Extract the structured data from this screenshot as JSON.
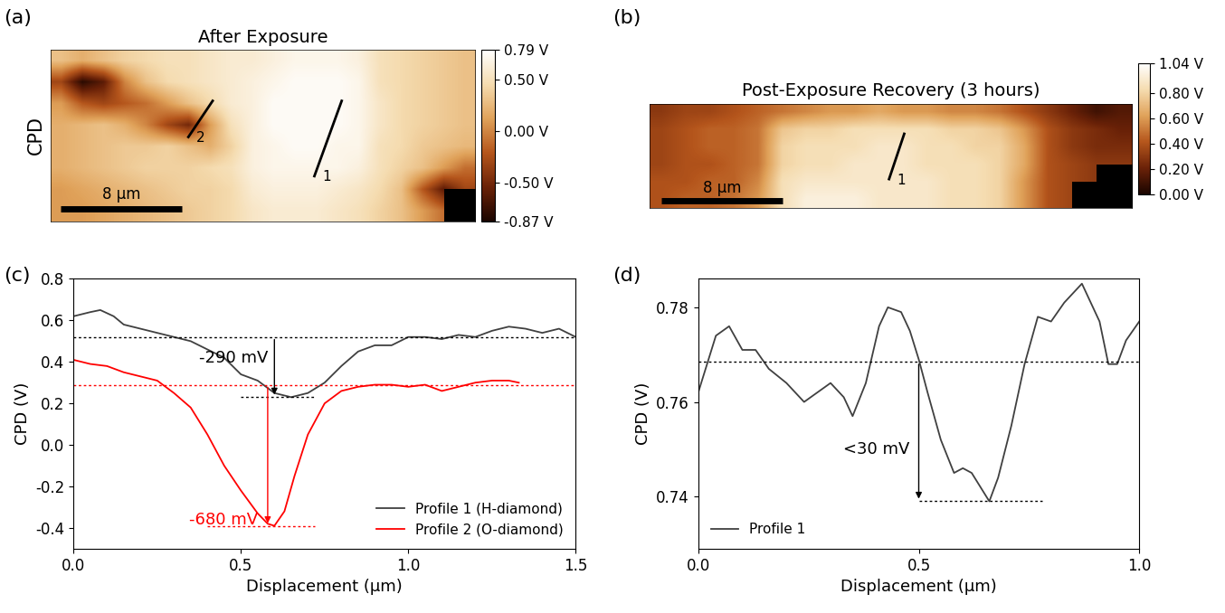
{
  "chart_data": [
    {
      "type": "heatmap",
      "panel": "(a)",
      "title": "After Exposure",
      "ylabel": "CPD",
      "xlim": [
        0,
        28
      ],
      "ylim": [
        0,
        11.4
      ],
      "tick_labels": false,
      "cells": [
        [
          0.3,
          0.2,
          0.3,
          0.4,
          0.45,
          0.5,
          0.5,
          0.55,
          0.6,
          0.6,
          0.65,
          0.7,
          0.7,
          0.7,
          0.65,
          0.5,
          0.45,
          0.4,
          0.35,
          0.3
        ],
        [
          -0.3,
          -0.8,
          -0.6,
          0.0,
          0.3,
          0.45,
          0.5,
          0.55,
          0.6,
          0.65,
          0.7,
          0.75,
          0.75,
          0.75,
          0.7,
          0.5,
          0.45,
          0.4,
          0.35,
          0.3
        ],
        [
          0.1,
          -0.2,
          -0.3,
          -0.2,
          -0.1,
          0.1,
          0.3,
          0.45,
          0.6,
          0.65,
          0.75,
          0.75,
          0.75,
          0.75,
          0.7,
          0.55,
          0.45,
          0.4,
          0.35,
          0.3
        ],
        [
          0.2,
          0.25,
          0.3,
          0.2,
          0.0,
          -0.3,
          -0.5,
          0.1,
          0.5,
          0.65,
          0.75,
          0.75,
          0.75,
          0.75,
          0.7,
          0.55,
          0.45,
          0.4,
          0.35,
          0.3
        ],
        [
          0.2,
          0.25,
          0.3,
          0.35,
          0.35,
          0.4,
          0.3,
          0.2,
          0.4,
          0.65,
          0.7,
          0.75,
          0.75,
          0.7,
          0.7,
          0.5,
          0.45,
          0.35,
          0.3,
          0.25
        ],
        [
          0.2,
          0.25,
          0.3,
          0.35,
          0.4,
          0.4,
          0.4,
          0.45,
          0.5,
          0.65,
          0.7,
          0.7,
          0.7,
          0.7,
          0.65,
          0.5,
          0.4,
          0.3,
          0.1,
          -0.1
        ],
        [
          0.1,
          0.15,
          0.2,
          0.25,
          0.3,
          0.35,
          0.4,
          0.4,
          0.45,
          0.6,
          0.65,
          0.65,
          0.65,
          0.6,
          0.55,
          0.45,
          0.3,
          -0.2,
          -0.6,
          -0.3
        ],
        [
          0.1,
          0.1,
          0.15,
          0.2,
          0.25,
          0.3,
          0.35,
          0.4,
          0.45,
          0.55,
          0.6,
          0.6,
          0.6,
          0.55,
          0.5,
          0.4,
          0.3,
          0.1,
          -0.1,
          null
        ]
      ],
      "colorbar": {
        "range": [
          -0.87,
          0.79
        ],
        "ticks": [
          {
            "value": 0.79,
            "label": "0.79 V"
          },
          {
            "value": 0.5,
            "label": "0.50 V"
          },
          {
            "value": 0.0,
            "label": "0.00 V"
          },
          {
            "value": -0.5,
            "label": "-0.50 V"
          },
          {
            "value": -0.87,
            "label": "-0.87 V"
          }
        ]
      },
      "profiles": [
        {
          "label": "1",
          "x": [
            19.2,
            17.4
          ],
          "y": [
            8.0,
            3.0
          ]
        },
        {
          "label": "2",
          "x": [
            10.7,
            9.1
          ],
          "y": [
            8.0,
            5.6
          ]
        }
      ],
      "scale_bar": {
        "length": 8,
        "label": "8 μm"
      }
    },
    {
      "type": "heatmap",
      "panel": "(b)",
      "title": "Post-Exposure Recovery (3 hours)",
      "xlim": [
        0,
        31.8
      ],
      "ylim": [
        0,
        6.9
      ],
      "tick_labels": false,
      "cells": [
        [
          0.3,
          0.35,
          0.35,
          0.4,
          0.45,
          0.5,
          0.55,
          0.6,
          0.6,
          0.65,
          0.6,
          0.6,
          0.55,
          0.55,
          0.5,
          0.4,
          0.3,
          0.2,
          0.1,
          0.15
        ],
        [
          0.35,
          0.4,
          0.45,
          0.45,
          0.5,
          0.75,
          0.8,
          0.8,
          0.85,
          0.85,
          0.85,
          0.85,
          0.8,
          0.8,
          0.75,
          0.6,
          0.4,
          0.3,
          0.25,
          0.2
        ],
        [
          0.35,
          0.4,
          0.45,
          0.45,
          0.5,
          0.8,
          0.85,
          0.85,
          0.85,
          0.9,
          0.9,
          0.85,
          0.85,
          0.8,
          0.8,
          0.65,
          0.4,
          0.3,
          0.25,
          0.25
        ],
        [
          0.35,
          0.4,
          0.4,
          0.45,
          0.5,
          0.8,
          0.85,
          0.85,
          0.9,
          0.9,
          0.9,
          0.85,
          0.85,
          0.85,
          0.8,
          0.65,
          0.4,
          0.35,
          0.3,
          0.3
        ],
        [
          0.4,
          0.4,
          0.45,
          0.45,
          0.55,
          0.85,
          0.9,
          0.9,
          0.9,
          0.9,
          0.9,
          0.9,
          0.85,
          0.85,
          0.8,
          0.6,
          0.4,
          0.35,
          0.3,
          null
        ],
        [
          0.4,
          0.45,
          0.45,
          0.5,
          0.6,
          0.85,
          0.95,
          0.95,
          0.95,
          0.9,
          0.9,
          0.9,
          0.85,
          0.85,
          0.8,
          0.6,
          0.4,
          0.35,
          null,
          null
        ]
      ],
      "colorbar": {
        "range": [
          0.0,
          1.04
        ],
        "ticks": [
          {
            "value": 1.04,
            "label": "1.04 V"
          },
          {
            "value": 0.8,
            "label": "0.80 V"
          },
          {
            "value": 0.6,
            "label": "0.60 V"
          },
          {
            "value": 0.4,
            "label": "0.40 V"
          },
          {
            "value": 0.2,
            "label": "0.20 V"
          },
          {
            "value": 0.0,
            "label": "0.00 V"
          }
        ]
      },
      "profiles": [
        {
          "label": "1",
          "x": [
            16.8,
            15.8
          ],
          "y": [
            4.9,
            1.9
          ]
        }
      ],
      "scale_bar": {
        "length": 8,
        "label": "8 μm"
      }
    },
    {
      "type": "line",
      "panel": "(c)",
      "xlabel": "Displacement (μm)",
      "ylabel": "CPD (V)",
      "xlim": [
        0,
        1.5
      ],
      "xticks": [
        0.0,
        0.5,
        1.0,
        1.5
      ],
      "ylim": [
        -0.5,
        0.8
      ],
      "yticks": [
        -0.4,
        -0.2,
        0.0,
        0.2,
        0.4,
        0.6,
        0.8
      ],
      "legend": "lower right",
      "series": [
        {
          "name": "Profile 1 (H-diamond)",
          "color": "#404040",
          "x": [
            0.0,
            0.05,
            0.08,
            0.12,
            0.15,
            0.2,
            0.25,
            0.3,
            0.35,
            0.4,
            0.45,
            0.5,
            0.55,
            0.6,
            0.65,
            0.7,
            0.75,
            0.8,
            0.85,
            0.9,
            0.95,
            1.0,
            1.05,
            1.1,
            1.15,
            1.2,
            1.25,
            1.3,
            1.35,
            1.4,
            1.45,
            1.5
          ],
          "values": [
            0.62,
            0.64,
            0.65,
            0.62,
            0.58,
            0.56,
            0.54,
            0.52,
            0.5,
            0.46,
            0.42,
            0.34,
            0.31,
            0.25,
            0.23,
            0.25,
            0.3,
            0.38,
            0.45,
            0.48,
            0.48,
            0.52,
            0.52,
            0.51,
            0.53,
            0.52,
            0.55,
            0.57,
            0.56,
            0.54,
            0.56,
            0.52
          ]
        },
        {
          "name": "Profile 2 (O-diamond)",
          "color": "#ff0000",
          "x": [
            0.0,
            0.05,
            0.1,
            0.15,
            0.2,
            0.25,
            0.3,
            0.35,
            0.4,
            0.45,
            0.5,
            0.55,
            0.58,
            0.6,
            0.63,
            0.66,
            0.7,
            0.75,
            0.8,
            0.85,
            0.9,
            0.95,
            1.0,
            1.05,
            1.1,
            1.15,
            1.2,
            1.25,
            1.3,
            1.33
          ],
          "values": [
            0.41,
            0.39,
            0.38,
            0.35,
            0.33,
            0.31,
            0.25,
            0.18,
            0.05,
            -0.1,
            -0.22,
            -0.33,
            -0.38,
            -0.39,
            -0.32,
            -0.15,
            0.05,
            0.2,
            0.26,
            0.28,
            0.29,
            0.29,
            0.28,
            0.29,
            0.26,
            0.28,
            0.3,
            0.31,
            0.31,
            0.3
          ]
        }
      ],
      "hlines": [
        {
          "y": 0.52,
          "xmin": 0.0,
          "xmax": 1.5,
          "color": "#000000"
        },
        {
          "y": 0.29,
          "xmin": 0.0,
          "xmax": 1.5,
          "color": "#ff0000"
        },
        {
          "y": 0.23,
          "xmin": 0.5,
          "xmax": 0.72,
          "color": "#000000"
        },
        {
          "y": -0.39,
          "xmin": 0.4,
          "xmax": 0.72,
          "color": "#ff0000"
        }
      ],
      "annotations": [
        {
          "text": "-290 mV",
          "x": 0.58,
          "y": 0.42,
          "color": "#000000",
          "arrow": {
            "x": 0.6,
            "y_from": 0.52,
            "y_to": 0.23
          }
        },
        {
          "text": "-680 mV",
          "x": 0.55,
          "y": -0.36,
          "color": "#ff0000",
          "arrow": {
            "x": 0.58,
            "y_from": 0.29,
            "y_to": -0.39
          }
        }
      ]
    },
    {
      "type": "line",
      "panel": "(d)",
      "xlabel": "Displacement (μm)",
      "ylabel": "CPD (V)",
      "xlim": [
        0,
        1
      ],
      "xticks": [
        0.0,
        0.5,
        1.0
      ],
      "ylim": [
        0.729,
        0.786
      ],
      "yticks": [
        0.74,
        0.76,
        0.78
      ],
      "legend": "lower left",
      "series": [
        {
          "name": "Profile 1",
          "color": "#404040",
          "x": [
            0.0,
            0.02,
            0.04,
            0.07,
            0.1,
            0.13,
            0.16,
            0.2,
            0.24,
            0.27,
            0.3,
            0.33,
            0.35,
            0.38,
            0.41,
            0.43,
            0.46,
            0.48,
            0.5,
            0.52,
            0.55,
            0.58,
            0.6,
            0.62,
            0.64,
            0.66,
            0.68,
            0.71,
            0.74,
            0.77,
            0.8,
            0.83,
            0.85,
            0.87,
            0.89,
            0.91,
            0.93,
            0.95,
            0.97,
            1.0
          ],
          "values": [
            0.762,
            0.768,
            0.774,
            0.776,
            0.771,
            0.771,
            0.767,
            0.764,
            0.76,
            0.762,
            0.764,
            0.761,
            0.757,
            0.764,
            0.776,
            0.78,
            0.779,
            0.775,
            0.769,
            0.762,
            0.752,
            0.745,
            0.746,
            0.745,
            0.742,
            0.739,
            0.744,
            0.755,
            0.768,
            0.778,
            0.777,
            0.781,
            0.783,
            0.785,
            0.781,
            0.777,
            0.768,
            0.768,
            0.773,
            0.777
          ]
        }
      ],
      "hlines": [
        {
          "y": 0.7685,
          "xmin": 0.0,
          "xmax": 1.0,
          "color": "#000000"
        },
        {
          "y": 0.739,
          "xmin": 0.5,
          "xmax": 0.78,
          "color": "#000000"
        }
      ],
      "annotations": [
        {
          "text": "<30 mV",
          "x": 0.48,
          "y": 0.75,
          "color": "#000000",
          "arrow": {
            "x": 0.5,
            "y_from": 0.7685,
            "y_to": 0.739
          }
        }
      ]
    }
  ]
}
